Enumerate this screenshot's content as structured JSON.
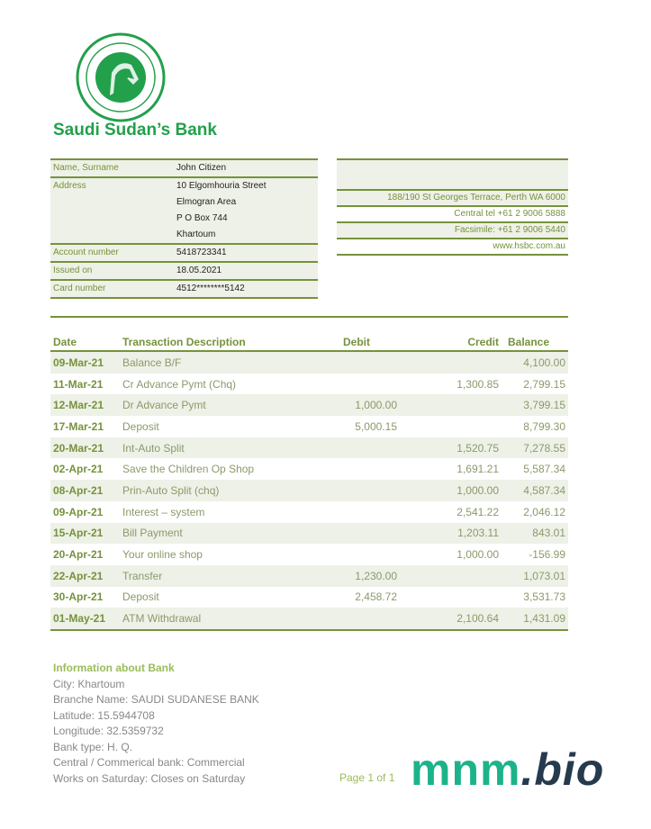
{
  "bank": {
    "name": "Saudi Sudan’s Bank",
    "logo_text": "SAUDI SUDANESE BANK",
    "brand_color": "#22a04b",
    "accent_color": "#76923c"
  },
  "customer": {
    "name_label": "Name, Surname",
    "name": "John Citizen",
    "address_label": "Address",
    "address": [
      "10 Elgomhouria Street",
      "Elmogran Area",
      "P O Box 744",
      "Khartoum"
    ],
    "account_label": "Account number",
    "account": "5418723341",
    "issued_label": "Issued on",
    "issued": "18.05.2021",
    "card_label": "Card number",
    "card": "4512********5142"
  },
  "contact": {
    "address": "188/190 St Georges Terrace, Perth WA 6000",
    "tel": "Central tel +61 2 9006 5888",
    "fax": "Facsimile: +61 2 9006 5440",
    "web": "www.hsbc.com.au"
  },
  "table": {
    "headers": {
      "date": "Date",
      "desc": "Transaction Description",
      "debit": "Debit",
      "credit": "Credit",
      "balance": "Balance"
    },
    "rows": [
      {
        "date": "09-Mar-21",
        "desc": "Balance B/F",
        "debit": "",
        "credit": "",
        "balance": "4,100.00"
      },
      {
        "date": "11-Mar-21",
        "desc": "Cr Advance Pymt (Chq)",
        "debit": "",
        "credit": "1,300.85",
        "balance": "2,799.15"
      },
      {
        "date": "12-Mar-21",
        "desc": "Dr Advance Pymt",
        "debit": "1,000.00",
        "credit": "",
        "balance": "3,799.15"
      },
      {
        "date": "17-Mar-21",
        "desc": "Deposit",
        "debit": "5,000.15",
        "credit": "",
        "balance": "8,799.30"
      },
      {
        "date": "20-Mar-21",
        "desc": "Int-Auto Split",
        "debit": "",
        "credit": "1,520.75",
        "balance": "7,278.55"
      },
      {
        "date": "02-Apr-21",
        "desc": "Save the Children Op Shop",
        "debit": "",
        "credit": "1,691.21",
        "balance": "5,587.34"
      },
      {
        "date": "08-Apr-21",
        "desc": "Prin-Auto Split (chq)",
        "debit": "",
        "credit": "1,000.00",
        "balance": "4,587.34"
      },
      {
        "date": "09-Apr-21",
        "desc": "Interest – system",
        "debit": "",
        "credit": "2,541.22",
        "balance": "2,046.12"
      },
      {
        "date": "15-Apr-21",
        "desc": "Bill Payment",
        "debit": "",
        "credit": "1,203.11",
        "balance": "843.01"
      },
      {
        "date": "20-Apr-21",
        "desc": "Your online shop",
        "debit": "",
        "credit": "1,000.00",
        "balance": "-156.99"
      },
      {
        "date": "22-Apr-21",
        "desc": "Transfer",
        "debit": "1,230.00",
        "credit": "",
        "balance": "1,073.01"
      },
      {
        "date": "30-Apr-21",
        "desc": "Deposit",
        "debit": "2,458.72",
        "credit": "",
        "balance": "3,531.73"
      },
      {
        "date": "01-May-21",
        "desc": "ATM Withdrawal",
        "debit": "",
        "credit": "2,100.64",
        "balance": "1,431.09"
      }
    ]
  },
  "bank_info": {
    "heading": "Information about Bank",
    "lines": [
      "City:  Khartoum",
      "Branche Name: SAUDI SUDANESE BANK",
      "Latitude:  15.5944708",
      "Longitude:  32.5359732",
      "Bank type:  H. Q.",
      "Central / Commerical bank: Commercial",
      "Works on Saturday: Closes on Saturday"
    ]
  },
  "footer": {
    "page": "Page 1 of 1",
    "watermark_a": "mnm",
    "watermark_b": ".bio"
  }
}
